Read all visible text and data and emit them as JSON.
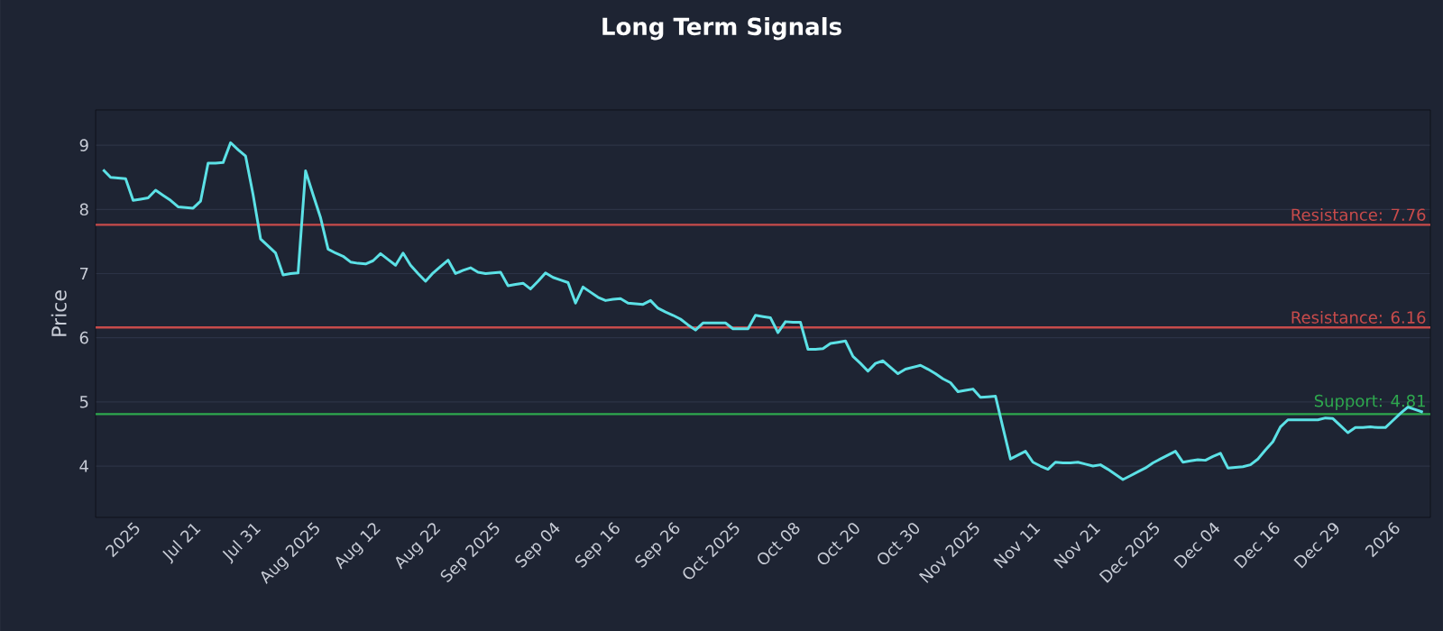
{
  "chart_data": {
    "type": "line",
    "title": "Long Term Signals",
    "ylabel": "Price",
    "categories": [
      null,
      null,
      null,
      null,
      "2025",
      null,
      null,
      null,
      null,
      null,
      null,
      null,
      "Jul 21",
      null,
      null,
      null,
      null,
      null,
      null,
      null,
      "Jul 31",
      null,
      null,
      null,
      null,
      null,
      null,
      null,
      "Aug 2025",
      null,
      null,
      null,
      null,
      null,
      null,
      null,
      "Aug 12",
      null,
      null,
      null,
      null,
      null,
      null,
      null,
      "Aug 22",
      null,
      null,
      null,
      null,
      null,
      null,
      null,
      "Sep 2025",
      null,
      null,
      null,
      null,
      null,
      null,
      null,
      "Sep 04",
      null,
      null,
      null,
      null,
      null,
      null,
      null,
      "Sep 16",
      null,
      null,
      null,
      null,
      null,
      null,
      null,
      "Sep 26",
      null,
      null,
      null,
      null,
      null,
      null,
      null,
      "Oct 2025",
      null,
      null,
      null,
      null,
      null,
      null,
      null,
      "Oct 08",
      null,
      null,
      null,
      null,
      null,
      null,
      null,
      "Oct 20",
      null,
      null,
      null,
      null,
      null,
      null,
      null,
      "Oct 30",
      null,
      null,
      null,
      null,
      null,
      null,
      null,
      "Nov 2025",
      null,
      null,
      null,
      null,
      null,
      null,
      null,
      "Nov 11",
      null,
      null,
      null,
      null,
      null,
      null,
      null,
      "Nov 21",
      null,
      null,
      null,
      null,
      null,
      null,
      null,
      "Dec 2025",
      null,
      null,
      null,
      null,
      null,
      null,
      null,
      "Dec 04",
      null,
      null,
      null,
      null,
      null,
      null,
      null,
      "Dec 16",
      null,
      null,
      null,
      null,
      null,
      null,
      null,
      "Dec 29",
      null,
      null,
      null,
      null,
      null,
      null,
      null,
      "2026",
      null,
      null,
      null,
      null
    ],
    "series": [
      {
        "color": "#5ce1e6",
        "values": [
          8.62,
          8.5,
          8.49,
          8.48,
          8.14,
          8.16,
          8.18,
          8.3,
          8.22,
          8.14,
          8.04,
          8.03,
          8.02,
          8.13,
          8.72,
          8.72,
          8.73,
          9.04,
          8.93,
          8.83,
          8.23,
          7.54,
          7.43,
          7.32,
          6.98,
          7.0,
          7.01,
          8.6,
          8.23,
          7.87,
          7.38,
          7.32,
          7.27,
          7.18,
          7.16,
          7.15,
          7.2,
          7.31,
          7.22,
          7.13,
          7.32,
          7.13,
          7.0,
          6.88,
          7.01,
          7.11,
          7.21,
          7.0,
          7.05,
          7.09,
          7.02,
          7.0,
          7.01,
          7.02,
          6.81,
          6.83,
          6.85,
          6.76,
          6.88,
          7.01,
          6.94,
          6.9,
          6.86,
          6.54,
          6.79,
          6.71,
          6.63,
          6.58,
          6.6,
          6.61,
          6.54,
          6.53,
          6.52,
          6.58,
          6.46,
          6.4,
          6.35,
          6.29,
          6.2,
          6.12,
          6.23,
          6.23,
          6.23,
          6.23,
          6.14,
          6.14,
          6.14,
          6.35,
          6.33,
          6.31,
          6.08,
          6.25,
          6.24,
          6.24,
          5.82,
          5.82,
          5.83,
          5.91,
          5.93,
          5.95,
          5.71,
          5.6,
          5.48,
          5.6,
          5.64,
          5.54,
          5.44,
          5.51,
          5.54,
          5.57,
          5.51,
          5.44,
          5.36,
          5.3,
          5.16,
          5.18,
          5.2,
          5.07,
          5.08,
          5.09,
          4.6,
          4.11,
          4.17,
          4.23,
          4.06,
          4.0,
          3.95,
          4.06,
          4.05,
          4.05,
          4.06,
          4.03,
          4.0,
          4.02,
          3.95,
          3.87,
          3.79,
          3.85,
          3.91,
          3.97,
          4.05,
          4.11,
          4.17,
          4.23,
          4.06,
          4.08,
          4.1,
          4.09,
          4.15,
          4.2,
          3.97,
          3.98,
          3.99,
          4.02,
          4.11,
          4.25,
          4.38,
          4.61,
          4.72,
          4.72,
          4.72,
          4.72,
          4.72,
          4.75,
          4.74,
          4.63,
          4.52,
          4.6,
          4.6,
          4.61,
          4.6,
          4.6,
          4.71,
          4.82,
          4.92,
          4.88,
          4.84
        ]
      }
    ],
    "ylim": [
      3.2,
      9.55
    ],
    "yticks": [
      4,
      5,
      6,
      7,
      8,
      9
    ],
    "ref_lines": [
      {
        "axis": "y",
        "value": 7.76,
        "label": "Resistance: 7.76",
        "color": "#c84b4b"
      },
      {
        "axis": "y",
        "value": 6.16,
        "label": "Resistance: 6.16",
        "color": "#c84b4b"
      },
      {
        "axis": "y",
        "value": 4.81,
        "label": "Support: 4.81",
        "color": "#2ea84e"
      }
    ],
    "grid": "y",
    "marker": "none",
    "line_style": "solid"
  }
}
